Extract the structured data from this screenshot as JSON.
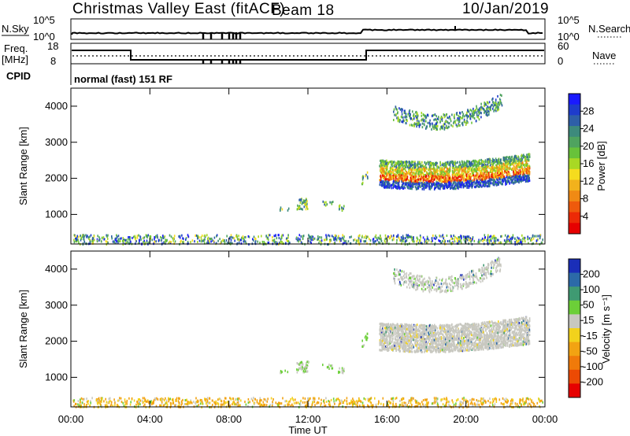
{
  "header": {
    "title": "Christmas Valley East (fitACF)",
    "beam": "Beam 18",
    "date": "10/Jan/2019"
  },
  "top_panels": {
    "nsky_label": "N.Sky",
    "nsky_ticks": [
      "10^5",
      "10^0"
    ],
    "nsearch_label": "N.Search",
    "nsearch_ticks": [
      "10^5",
      "10^0"
    ],
    "freq_label_1": "Freq.",
    "freq_label_2": "[MHz]",
    "freq_ticks": [
      "18",
      "8"
    ],
    "nave_label": "Nave",
    "nave_ticks": [
      "60",
      "0"
    ],
    "cpid_label": "CPID",
    "cpid_value": "normal (fast) 151 RF"
  },
  "chart_data": [
    {
      "type": "heatmap",
      "name": "power",
      "ylabel": "Slant Range [km]",
      "yticks": [
        "4000",
        "3000",
        "2000",
        "1000"
      ],
      "ylim": [
        180,
        4500
      ],
      "colorbar_label": "Power [dB]",
      "colorbar_ticks": [
        "28",
        "24",
        "20",
        "16",
        "12",
        "8",
        "4"
      ],
      "colors": [
        "#1a1aff",
        "#1e3ccc",
        "#2e5fa8",
        "#3d8a7c",
        "#4fa35f",
        "#68c23a",
        "#a8d824",
        "#f5dc1e",
        "#f2b21c",
        "#f08a14",
        "#ee5a0c",
        "#ec2a06",
        "#e60000"
      ]
    },
    {
      "type": "heatmap",
      "name": "velocity",
      "ylabel": "Slant Range [km]",
      "yticks": [
        "4000",
        "3000",
        "2000",
        "1000"
      ],
      "ylim": [
        180,
        4500
      ],
      "colorbar_label": "Velocity [m s⁻¹]",
      "colorbar_ticks": [
        "200",
        "100",
        "50",
        "15",
        "-15",
        "-50",
        "-100",
        "-200"
      ],
      "colors": [
        "#1a2eb8",
        "#2c6aa8",
        "#3f9a72",
        "#6ccf38",
        "#c8c8c0",
        "#f2d21c",
        "#f2a312",
        "#f07a0a",
        "#ec4a04",
        "#e60000"
      ],
      "xlabel": "Time UT",
      "xticks": [
        "00:00",
        "04:00",
        "08:00",
        "12:00",
        "16:00",
        "20:00",
        "00:00"
      ]
    }
  ]
}
